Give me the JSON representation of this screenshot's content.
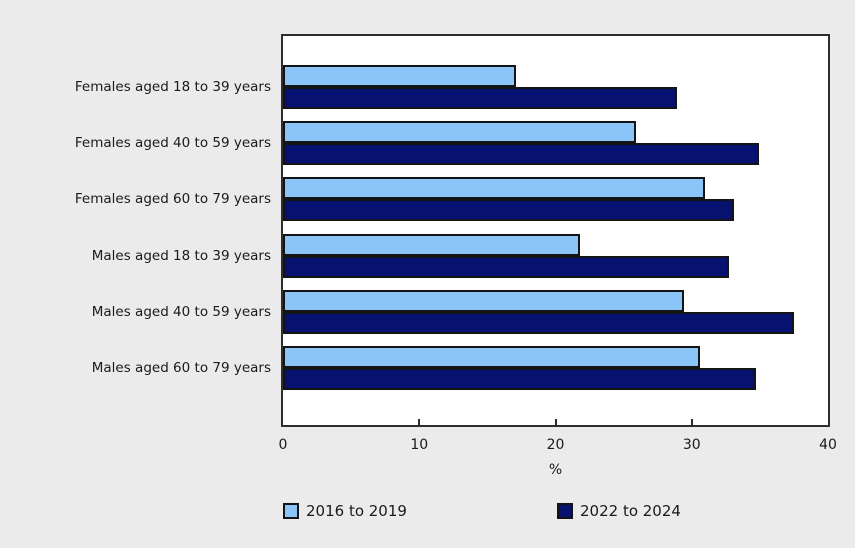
{
  "chart_data": {
    "type": "bar",
    "orientation": "horizontal",
    "title": "",
    "categories": [
      "Females aged 18 to 39 years",
      "Females aged 40 to 59 years",
      "Females aged 60 to 79 years",
      "Males aged 18 to 39 years",
      "Males aged 40 to 59 years",
      "Males aged 60 to 79 years"
    ],
    "series": [
      {
        "name": "2016 to 2019",
        "color": "#8bc4f7",
        "values": [
          17.1,
          25.9,
          31.0,
          21.8,
          29.4,
          30.6
        ]
      },
      {
        "name": "2022 to 2024",
        "color": "#071170",
        "values": [
          28.9,
          34.9,
          33.1,
          32.7,
          37.5,
          34.7
        ]
      }
    ],
    "xlabel": "%",
    "ylabel": "",
    "xlim": [
      0,
      40
    ],
    "xticks": [
      0,
      10,
      20,
      30,
      40
    ],
    "grid": false,
    "legend_position": "bottom",
    "plot_background": "#ffffff",
    "page_background": "#ebebeb"
  }
}
